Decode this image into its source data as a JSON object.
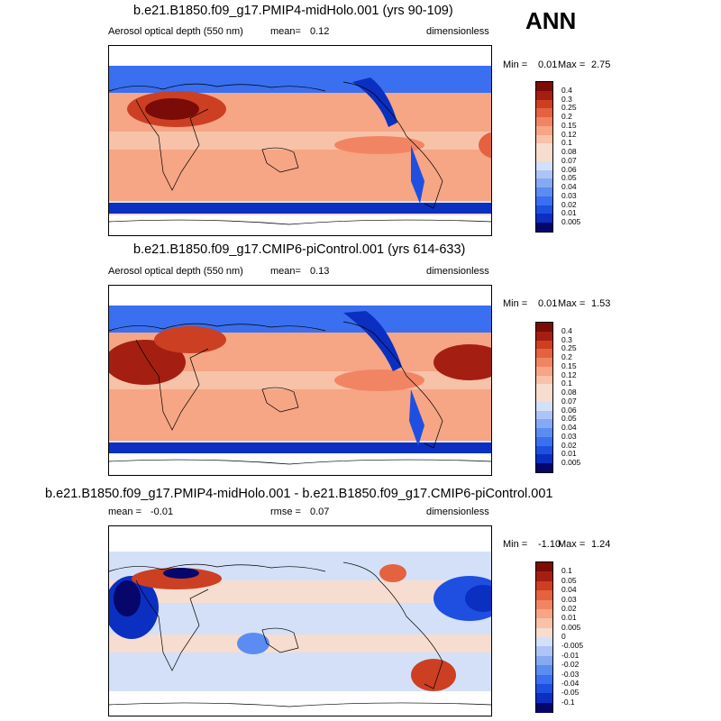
{
  "season_label": "ANN",
  "colors": {
    "aod_scale": [
      "#06066b",
      "#0b2fc1",
      "#1e4fe0",
      "#3a6ff0",
      "#5b8cf2",
      "#86a9f4",
      "#aec4f6",
      "#d4e0f8",
      "#f6ddd0",
      "#f7c2a8",
      "#f6a585",
      "#f18563",
      "#e4623f",
      "#cc3f22",
      "#a41f12",
      "#7a0b07"
    ],
    "diff_scale": [
      "#06066b",
      "#0b2fc1",
      "#1e4fe0",
      "#3a6ff0",
      "#5b8cf2",
      "#86a9f4",
      "#aec4f6",
      "#d4e0f8",
      "#f6ddd0",
      "#f7c2a8",
      "#f6a585",
      "#f18563",
      "#e4623f",
      "#cc3f22",
      "#a41f12",
      "#7a0b07"
    ],
    "land_outline": "#000000"
  },
  "chart_data": [
    {
      "type": "heatmap",
      "title": "b.e21.B1850.f09_g17.PMIP4-midHolo.001 (yrs 90-109)",
      "variable": "Aerosol optical depth (550 nm)",
      "mean_label": "mean=",
      "mean": "0.12",
      "units": "dimensionless",
      "min_label": "Min =",
      "min": "0.01",
      "max_label": "Max =",
      "max": "2.75",
      "colorbar_levels": [
        "0.4",
        "0.3",
        "0.25",
        "0.2",
        "0.15",
        "0.12",
        "0.1",
        "0.08",
        "0.07",
        "0.06",
        "0.05",
        "0.04",
        "0.03",
        "0.02",
        "0.01",
        "0.005"
      ]
    },
    {
      "type": "heatmap",
      "title": "b.e21.B1850.f09_g17.CMIP6-piControl.001 (yrs 614-633)",
      "variable": "Aerosol optical depth (550 nm)",
      "mean_label": "mean=",
      "mean": "0.13",
      "units": "dimensionless",
      "min_label": "Min =",
      "min": "0.01",
      "max_label": "Max =",
      "max": "1.53",
      "colorbar_levels": [
        "0.4",
        "0.3",
        "0.25",
        "0.2",
        "0.15",
        "0.12",
        "0.1",
        "0.08",
        "0.07",
        "0.06",
        "0.05",
        "0.04",
        "0.03",
        "0.02",
        "0.01",
        "0.005"
      ]
    },
    {
      "type": "heatmap",
      "title": "b.e21.B1850.f09_g17.PMIP4-midHolo.001 - b.e21.B1850.f09_g17.CMIP6-piControl.001",
      "mean_label": "mean =",
      "mean": "-0.01",
      "rmse_label": "rmse =",
      "rmse": "0.07",
      "units": "dimensionless",
      "min_label": "Min =",
      "min": "-1.10",
      "max_label": "Max =",
      "max": "1.24",
      "colorbar_levels": [
        "0.1",
        "0.05",
        "0.04",
        "0.03",
        "0.02",
        "0.01",
        "0.005",
        "0",
        "-0.005",
        "-0.01",
        "-0.02",
        "-0.03",
        "-0.04",
        "-0.05",
        "-0.1"
      ]
    }
  ]
}
